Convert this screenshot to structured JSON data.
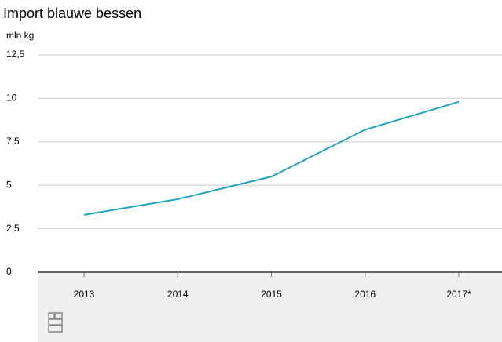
{
  "chart_data": {
    "type": "line",
    "title": "Import blauwe bessen",
    "y_label": "mln kg",
    "categories": [
      "2013",
      "2014",
      "2015",
      "2016",
      "2017*"
    ],
    "series": [
      {
        "color": "#1ea5bb",
        "values": [
          3.3,
          4.2,
          5.5,
          8.2,
          9.8
        ]
      }
    ],
    "ylim": [
      0,
      12.5
    ],
    "yticks": [
      0,
      {
        "value": 2.5,
        "label": "2,5"
      },
      5,
      {
        "value": 7.5,
        "label": "7,5"
      },
      10,
      {
        "value": 12.5,
        "label": "12,5"
      }
    ],
    "grid": true
  }
}
